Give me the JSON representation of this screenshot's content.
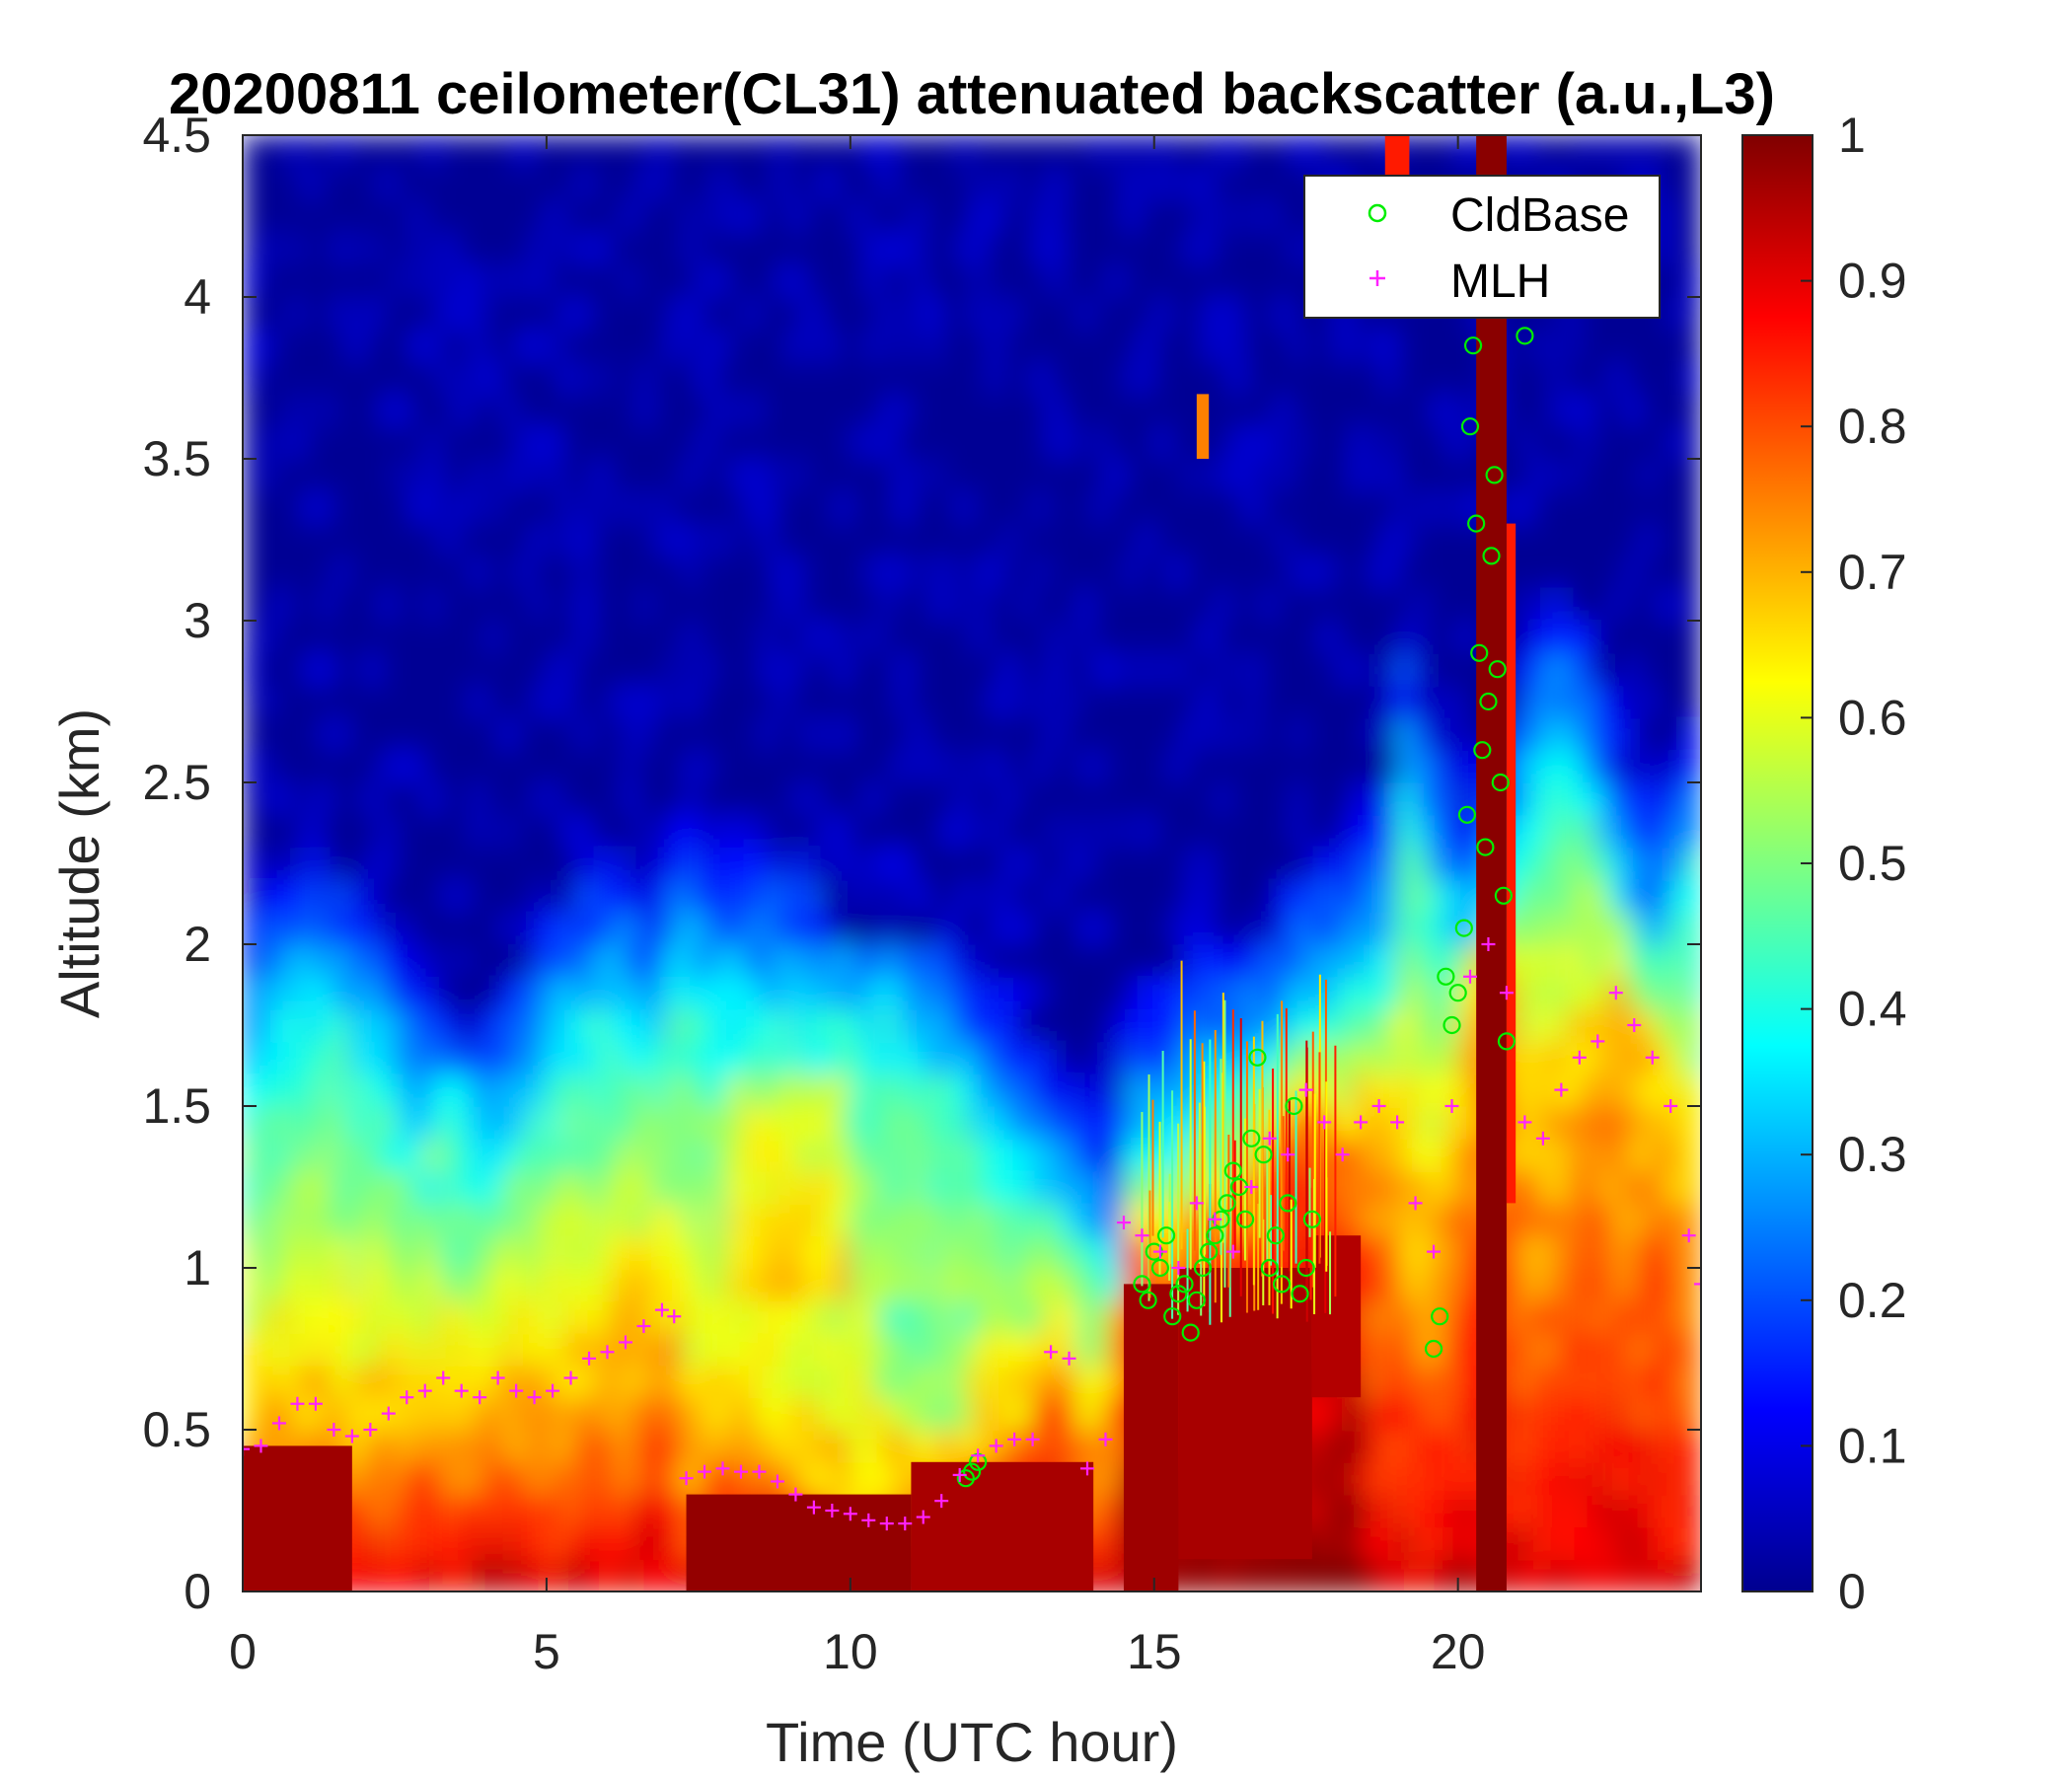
{
  "chart_data": {
    "type": "heatmap",
    "title": "20200811 ceilometer(CL31) attenuated backscatter (a.u.,L3)",
    "xlabel": "Time (UTC hour)",
    "ylabel": "Altitude (km)",
    "xlim": [
      0,
      24
    ],
    "ylim": [
      0,
      4.5
    ],
    "xticks": [
      "0",
      "5",
      "10",
      "15",
      "20"
    ],
    "yticks": [
      "0",
      "0.5",
      "1",
      "1.5",
      "2",
      "2.5",
      "3",
      "3.5",
      "4",
      "4.5"
    ],
    "colorbar": {
      "colormap": "jet",
      "range": [
        0,
        1
      ],
      "ticks": [
        "0",
        "0.1",
        "0.2",
        "0.3",
        "0.4",
        "0.5",
        "0.6",
        "0.7",
        "0.8",
        "0.9",
        "1"
      ]
    },
    "legend": {
      "position": "top-right",
      "entries": [
        {
          "label": "CldBase",
          "marker": "circle",
          "color": "#00ee00"
        },
        {
          "label": "MLH",
          "marker": "plus",
          "color": "#ff22ff"
        }
      ]
    },
    "series": [
      {
        "name": "CldBase",
        "marker": "circle",
        "color": "#00ee00",
        "x": [
          11.9,
          12.0,
          12.1,
          14.8,
          14.9,
          15.0,
          15.1,
          15.2,
          15.3,
          15.4,
          15.5,
          15.6,
          15.7,
          15.8,
          15.9,
          16.0,
          16.1,
          16.2,
          16.3,
          16.4,
          16.5,
          16.6,
          16.7,
          16.8,
          16.9,
          17.0,
          17.1,
          17.2,
          17.3,
          17.4,
          17.5,
          17.6,
          19.6,
          19.7,
          19.8,
          19.9,
          20.0,
          20.1,
          20.15,
          20.2,
          20.25,
          20.3,
          20.35,
          20.4,
          20.45,
          20.5,
          20.55,
          20.6,
          20.65,
          20.7,
          20.75,
          20.8,
          21.1
        ],
        "y": [
          0.35,
          0.37,
          0.4,
          0.95,
          0.9,
          1.05,
          1.0,
          1.1,
          0.85,
          0.92,
          0.95,
          0.8,
          0.9,
          1.0,
          1.05,
          1.1,
          1.15,
          1.2,
          1.3,
          1.25,
          1.15,
          1.4,
          1.65,
          1.35,
          1.0,
          1.1,
          0.95,
          1.2,
          1.5,
          0.92,
          1.0,
          1.15,
          0.75,
          0.85,
          1.9,
          1.75,
          1.85,
          2.05,
          2.4,
          3.6,
          3.85,
          3.3,
          2.9,
          2.6,
          2.3,
          2.75,
          3.2,
          3.45,
          2.85,
          2.5,
          2.15,
          1.7,
          3.88
        ]
      },
      {
        "name": "MLH",
        "marker": "plus",
        "color": "#ff22ff",
        "x": [
          0.0,
          0.3,
          0.6,
          0.9,
          1.2,
          1.5,
          1.8,
          2.1,
          2.4,
          2.7,
          3.0,
          3.3,
          3.6,
          3.9,
          4.2,
          4.5,
          4.8,
          5.1,
          5.4,
          5.7,
          6.0,
          6.3,
          6.6,
          6.9,
          7.1,
          7.3,
          7.6,
          7.9,
          8.2,
          8.5,
          8.8,
          9.1,
          9.4,
          9.7,
          10.0,
          10.3,
          10.6,
          10.9,
          11.2,
          11.5,
          11.8,
          12.1,
          12.4,
          12.7,
          13.0,
          13.3,
          13.6,
          13.9,
          14.2,
          14.5,
          14.8,
          15.1,
          15.4,
          15.7,
          16.0,
          16.3,
          16.6,
          16.9,
          17.2,
          17.5,
          17.8,
          18.1,
          18.4,
          18.7,
          19.0,
          19.3,
          19.6,
          19.9,
          20.2,
          20.5,
          20.8,
          21.1,
          21.4,
          21.7,
          22.0,
          22.3,
          22.6,
          22.9,
          23.2,
          23.5,
          23.8,
          24.0
        ],
        "y": [
          0.44,
          0.45,
          0.52,
          0.58,
          0.58,
          0.5,
          0.48,
          0.5,
          0.55,
          0.6,
          0.62,
          0.66,
          0.62,
          0.6,
          0.66,
          0.62,
          0.6,
          0.62,
          0.66,
          0.72,
          0.74,
          0.77,
          0.82,
          0.87,
          0.85,
          0.35,
          0.37,
          0.38,
          0.37,
          0.37,
          0.34,
          0.3,
          0.26,
          0.25,
          0.24,
          0.22,
          0.21,
          0.21,
          0.23,
          0.28,
          0.36,
          0.42,
          0.45,
          0.47,
          0.47,
          0.74,
          0.72,
          0.38,
          0.47,
          1.14,
          1.1,
          1.05,
          1.0,
          1.2,
          1.15,
          1.05,
          1.25,
          1.4,
          1.35,
          1.55,
          1.45,
          1.35,
          1.45,
          1.5,
          1.45,
          1.2,
          1.05,
          1.5,
          1.9,
          2.0,
          1.85,
          1.45,
          1.4,
          1.55,
          1.65,
          1.7,
          1.85,
          1.75,
          1.65,
          1.5,
          1.1,
          0.95
        ]
      }
    ]
  }
}
